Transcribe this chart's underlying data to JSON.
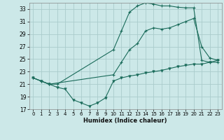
{
  "xlabel": "Humidex (Indice chaleur)",
  "bg_color": "#cce8e8",
  "grid_color": "#aacccc",
  "line_color": "#1a6b5a",
  "xlim": [
    -0.5,
    23.5
  ],
  "ylim": [
    17,
    34
  ],
  "yticks": [
    17,
    19,
    21,
    23,
    25,
    27,
    29,
    31,
    33
  ],
  "xticks": [
    0,
    1,
    2,
    3,
    4,
    5,
    6,
    7,
    8,
    9,
    10,
    11,
    12,
    13,
    14,
    15,
    16,
    17,
    18,
    19,
    20,
    21,
    22,
    23
  ],
  "line1_x": [
    0,
    1,
    2,
    3,
    10,
    11,
    12,
    13,
    14,
    15,
    16,
    17,
    18,
    19,
    20,
    21,
    22,
    23
  ],
  "line1_y": [
    22.0,
    21.5,
    21.0,
    21.0,
    26.5,
    29.5,
    32.5,
    33.5,
    34.0,
    33.8,
    33.5,
    33.5,
    33.3,
    33.2,
    33.2,
    24.8,
    24.5,
    24.5
  ],
  "line2_x": [
    0,
    1,
    2,
    10,
    11,
    12,
    13,
    14,
    15,
    16,
    17,
    18,
    19,
    20,
    21,
    22,
    23
  ],
  "line2_y": [
    22.0,
    21.5,
    21.0,
    22.5,
    24.5,
    26.5,
    27.5,
    29.5,
    30.0,
    29.8,
    30.0,
    30.5,
    31.0,
    31.5,
    27.0,
    25.2,
    24.8
  ],
  "line3_x": [
    0,
    1,
    2,
    3,
    4,
    5,
    6,
    7,
    8,
    9,
    10,
    11,
    12,
    13,
    14,
    15,
    16,
    17,
    18,
    19,
    20,
    21,
    22,
    23
  ],
  "line3_y": [
    22.0,
    21.5,
    21.0,
    20.5,
    20.2,
    18.5,
    18.0,
    17.5,
    18.0,
    18.8,
    21.5,
    22.0,
    22.3,
    22.5,
    22.8,
    23.0,
    23.2,
    23.5,
    23.8,
    24.0,
    24.2,
    24.2,
    24.5,
    24.8
  ]
}
